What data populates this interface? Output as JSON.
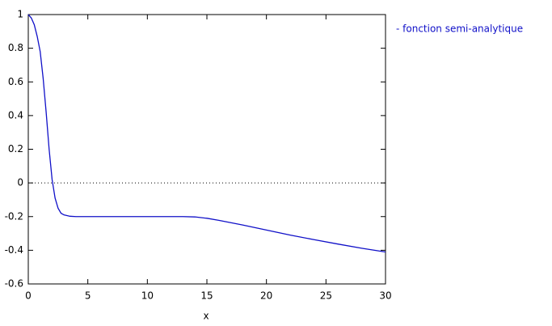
{
  "chart_data": {
    "type": "line",
    "x": [
      0,
      0.25,
      0.5,
      0.75,
      1,
      1.25,
      1.5,
      1.75,
      2,
      2.25,
      2.5,
      2.75,
      3,
      3.5,
      4,
      5,
      6,
      8,
      10,
      12,
      13,
      14,
      15,
      16,
      17,
      18,
      19,
      20,
      22,
      24,
      26,
      28,
      30
    ],
    "series": [
      {
        "name": "- fonction semi-analytique",
        "color": "#1010c8",
        "values": [
          1,
          0.98,
          0.94,
          0.87,
          0.78,
          0.62,
          0.42,
          0.2,
          0.02,
          -0.09,
          -0.15,
          -0.18,
          -0.19,
          -0.198,
          -0.2,
          -0.2,
          -0.2,
          -0.2,
          -0.2,
          -0.2,
          -0.2,
          -0.202,
          -0.21,
          -0.222,
          -0.236,
          -0.25,
          -0.265,
          -0.28,
          -0.31,
          -0.337,
          -0.363,
          -0.388,
          -0.41
        ]
      }
    ],
    "xlabel": "x",
    "xlim": [
      0,
      30
    ],
    "xticks": [
      0,
      5,
      10,
      15,
      20,
      25,
      30
    ],
    "ylim": [
      -0.6,
      1
    ],
    "yticks": [
      -0.6,
      -0.4,
      -0.2,
      0,
      0.2,
      0.4,
      0.6,
      0.8,
      1
    ],
    "zero_line": true,
    "legend": "top-right-outside"
  }
}
